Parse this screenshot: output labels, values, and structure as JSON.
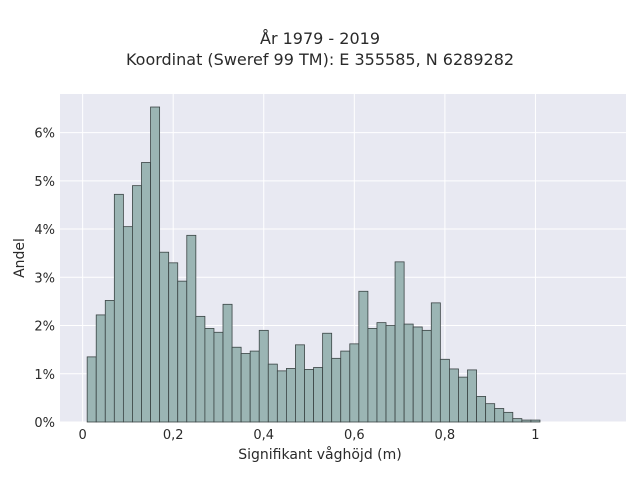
{
  "chart_data": {
    "type": "bar",
    "title": "År 1979 - 2019",
    "subtitle": "Koordinat (Sweref 99 TM): E 355585, N 6289282",
    "xlabel": "Signifikant våghöjd (m)",
    "ylabel": "Andel",
    "xlim": [
      -0.05,
      1.2
    ],
    "ylim": [
      0,
      6.8
    ],
    "x_ticks": [
      0,
      0.2,
      0.4,
      0.6,
      0.8,
      1
    ],
    "x_tick_labels": [
      "0",
      "0,2",
      "0,4",
      "0,6",
      "0,8",
      "1"
    ],
    "y_ticks": [
      0,
      1,
      2,
      3,
      4,
      5,
      6
    ],
    "y_tick_labels": [
      "0%",
      "1%",
      "2%",
      "3%",
      "4%",
      "5%",
      "6%"
    ],
    "grid": true,
    "bin_start": 0.01,
    "bin_width": 0.02,
    "values": [
      1.35,
      2.22,
      2.52,
      4.72,
      4.05,
      4.9,
      5.38,
      6.53,
      3.52,
      3.3,
      2.92,
      3.87,
      2.19,
      1.94,
      1.86,
      2.44,
      1.55,
      1.42,
      1.47,
      1.9,
      1.2,
      1.06,
      1.11,
      1.6,
      1.09,
      1.13,
      1.84,
      1.32,
      1.47,
      1.62,
      2.71,
      1.94,
      2.06,
      2.0,
      3.32,
      2.03,
      1.97,
      1.9,
      2.47,
      1.3,
      1.1,
      0.93,
      1.08,
      0.53,
      0.38,
      0.28,
      0.2,
      0.07,
      0.04,
      0.04
    ],
    "colors": {
      "background": "#e8e9f2",
      "bar_fill": "#9bb5b4",
      "bar_stroke": "#3a4444",
      "grid": "#ffffff"
    }
  }
}
